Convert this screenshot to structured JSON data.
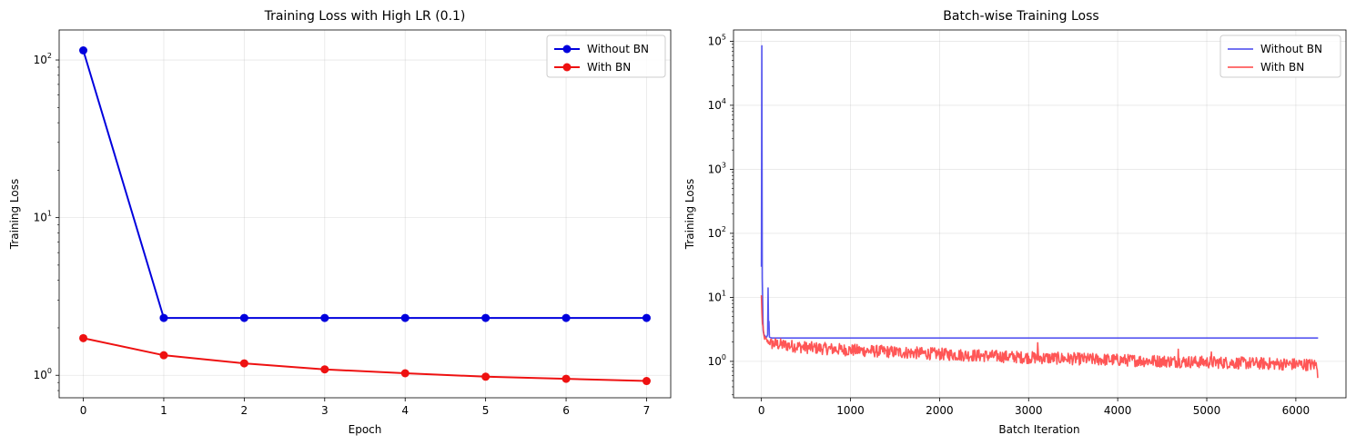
{
  "chart_data": [
    {
      "type": "line",
      "title": "Training Loss with High LR (0.1)",
      "xlabel": "Epoch",
      "ylabel": "Training Loss",
      "yscale": "log",
      "xlim": [
        -0.3,
        7.3
      ],
      "ylim": [
        0.72,
        155
      ],
      "xticks": [
        0,
        1,
        2,
        3,
        4,
        5,
        6,
        7
      ],
      "yticks": [
        {
          "base": "10",
          "exp": "0",
          "value": 1
        },
        {
          "base": "10",
          "exp": "1",
          "value": 10
        },
        {
          "base": "10",
          "exp": "2",
          "value": 100
        }
      ],
      "grid": true,
      "legend": "top-right",
      "x": [
        0,
        1,
        2,
        3,
        4,
        5,
        6,
        7
      ],
      "series": [
        {
          "name": "Without BN",
          "color": "#0000dd",
          "marker": "circle",
          "values": [
            115,
            2.31,
            2.31,
            2.31,
            2.31,
            2.31,
            2.31,
            2.31
          ]
        },
        {
          "name": "With BN",
          "color": "#ee1111",
          "marker": "circle",
          "values": [
            1.72,
            1.34,
            1.19,
            1.09,
            1.03,
            0.98,
            0.95,
            0.92
          ]
        }
      ]
    },
    {
      "type": "line",
      "title": "Batch-wise Training Loss",
      "xlabel": "Batch Iteration",
      "ylabel": "Training Loss",
      "yscale": "log",
      "xlim": [
        -313,
        6563
      ],
      "ylim": [
        0.27,
        150000
      ],
      "xticks": [
        0,
        1000,
        2000,
        3000,
        4000,
        5000,
        6000
      ],
      "yticks": [
        {
          "base": "10",
          "exp": "0",
          "value": 1
        },
        {
          "base": "10",
          "exp": "1",
          "value": 10
        },
        {
          "base": "10",
          "exp": "2",
          "value": 100
        },
        {
          "base": "10",
          "exp": "3",
          "value": 1000
        },
        {
          "base": "10",
          "exp": "4",
          "value": 10000
        },
        {
          "base": "10",
          "exp": "5",
          "value": 100000
        }
      ],
      "grid": true,
      "legend": "top-right",
      "series": [
        {
          "name": "Without BN",
          "color": "#4444ee",
          "x": [
            0,
            5,
            10,
            20,
            30,
            40,
            50,
            60,
            70,
            75,
            80,
            85,
            90,
            100,
            120,
            6250
          ],
          "values": [
            30,
            85000,
            20,
            3,
            2.6,
            2.5,
            2.4,
            2.4,
            2.6,
            14,
            3.5,
            4.2,
            2.4,
            2.35,
            2.32,
            2.32
          ]
        },
        {
          "name": "With BN",
          "color": "#ff4444",
          "noise": true,
          "x": [
            0,
            10,
            30,
            60,
            100,
            500,
            1000,
            1500,
            2000,
            3000,
            4000,
            5000,
            6000,
            6250
          ],
          "values": [
            10.5,
            4,
            2.4,
            2.1,
            1.9,
            1.65,
            1.5,
            1.4,
            1.3,
            1.15,
            1.05,
            0.97,
            0.9,
            0.88
          ],
          "spikes": [
            {
              "x": 3100,
              "y": 1.95
            },
            {
              "x": 4680,
              "y": 1.55
            },
            {
              "x": 5050,
              "y": 1.4
            },
            {
              "x": 6250,
              "y": 0.55
            }
          ]
        }
      ]
    }
  ]
}
